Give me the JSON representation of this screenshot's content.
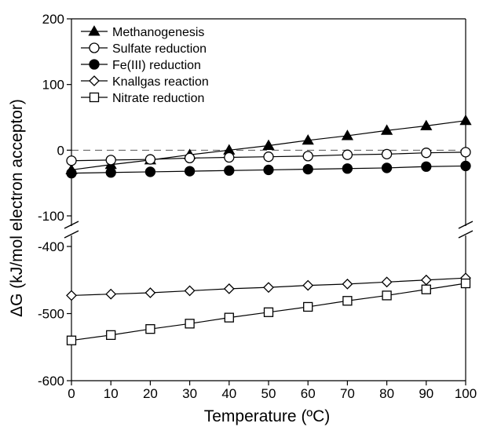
{
  "chart_data": {
    "type": "line",
    "xlabel": "Temperature (ºC)",
    "ylabel": "ΔG (kJ/mol electron acceptor)",
    "x": [
      0,
      10,
      20,
      30,
      40,
      50,
      60,
      70,
      80,
      90,
      100
    ],
    "xlim": [
      0,
      100
    ],
    "x_ticks": [
      "0",
      "10",
      "20",
      "30",
      "40",
      "50",
      "60",
      "70",
      "80",
      "90",
      "100"
    ],
    "axis_break": true,
    "upper_panel": {
      "ylim": [
        -100,
        200
      ],
      "y_ticks": [
        "200",
        "100",
        "0",
        "-100"
      ]
    },
    "lower_panel": {
      "ylim": [
        -600,
        -400
      ],
      "y_ticks": [
        "-400",
        "-500",
        "-600"
      ]
    },
    "reference_line": {
      "y": 0,
      "style": "dashed"
    },
    "legend_position": "top-left",
    "series": [
      {
        "name": "Methanogenesis",
        "marker": "filled-triangle",
        "panel": "upper",
        "values": [
          -30,
          -22,
          -15,
          -7,
          0,
          7,
          15,
          22,
          30,
          37,
          45
        ]
      },
      {
        "name": "Sulfate reduction",
        "marker": "open-circle",
        "panel": "upper",
        "values": [
          -16,
          -15,
          -14,
          -12,
          -11,
          -10,
          -9,
          -7,
          -6,
          -4,
          -3
        ]
      },
      {
        "name": "Fe(III) reduction",
        "marker": "filled-circle",
        "panel": "upper",
        "values": [
          -35,
          -34,
          -33,
          -32,
          -31,
          -30,
          -29,
          -28,
          -27,
          -25,
          -24
        ]
      },
      {
        "name": "Knallgas reaction",
        "marker": "open-diamond",
        "panel": "lower",
        "values": [
          -473,
          -471,
          -469,
          -466,
          -463,
          -461,
          -458,
          -456,
          -453,
          -450,
          -447
        ]
      },
      {
        "name": "Nitrate reduction",
        "marker": "open-square",
        "panel": "lower",
        "values": [
          -540,
          -532,
          -523,
          -515,
          -506,
          -498,
          -490,
          -481,
          -473,
          -464,
          -455
        ]
      }
    ]
  }
}
